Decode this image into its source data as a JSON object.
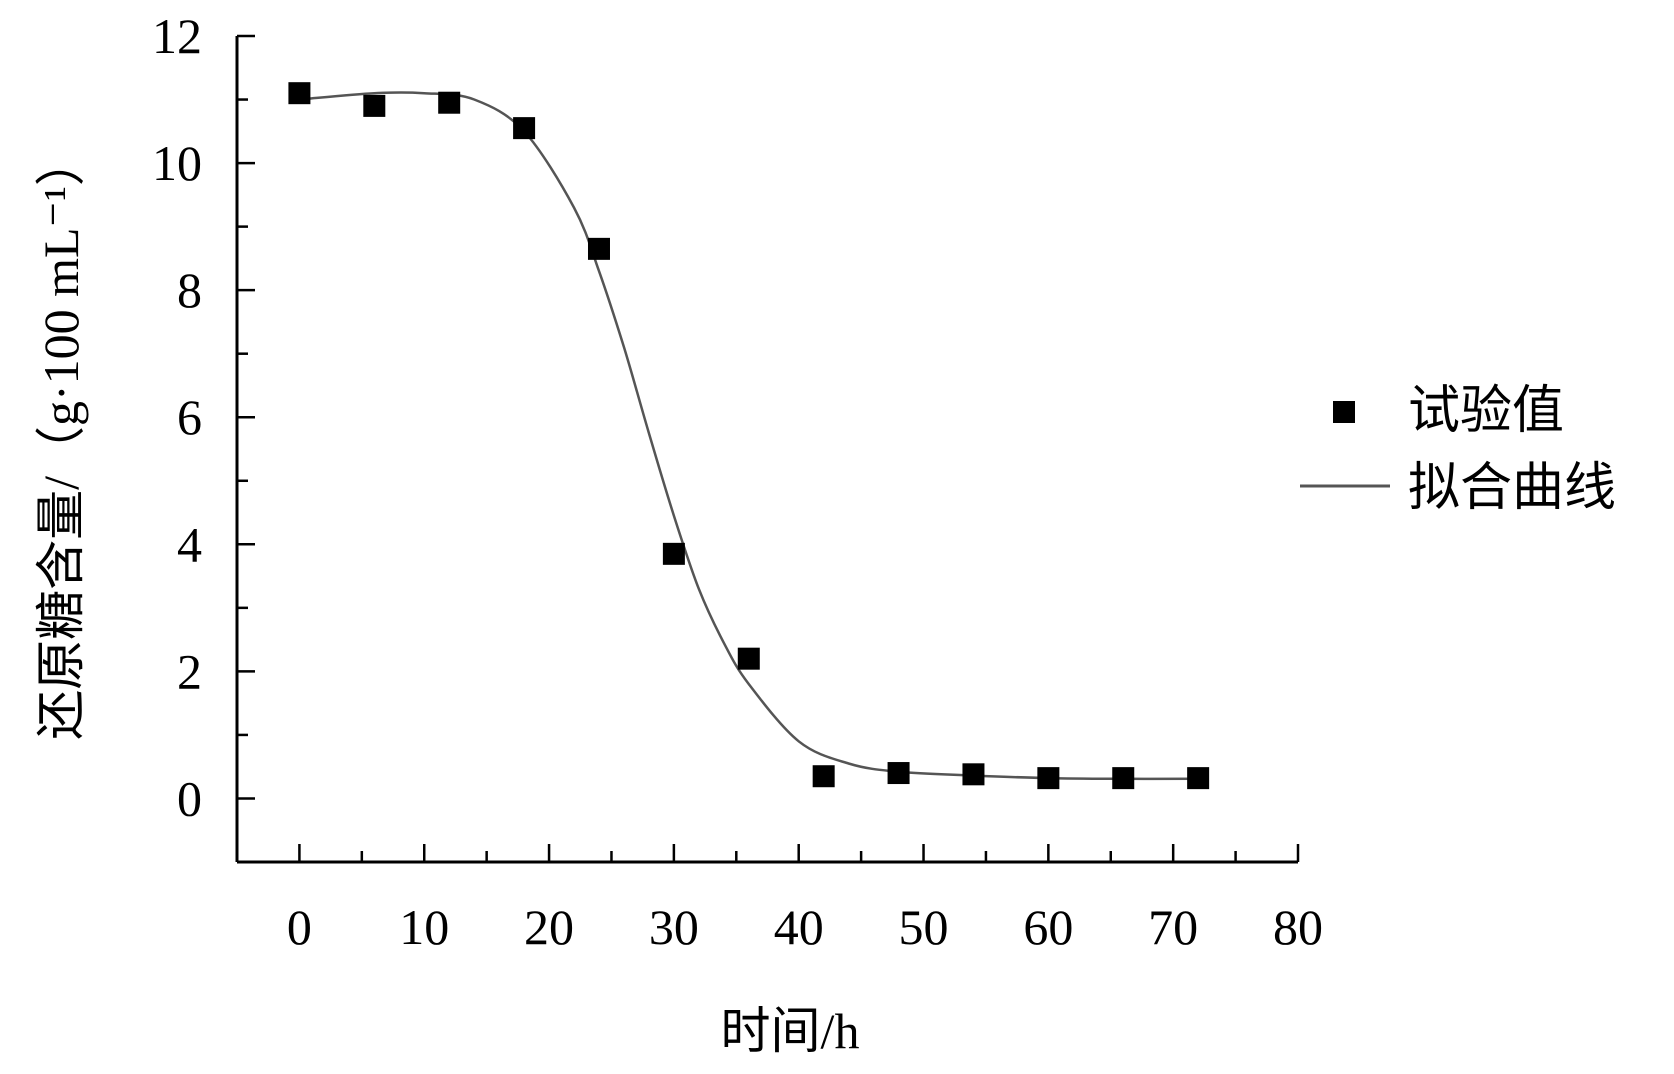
{
  "chart_data": {
    "type": "scatter",
    "xlabel": "时间/h",
    "ylabel": "还原糖含量/（g·100 mL⁻¹）",
    "xlim": [
      -5,
      80
    ],
    "ylim": [
      -1,
      12
    ],
    "xticks": [
      0,
      10,
      20,
      30,
      40,
      50,
      60,
      70,
      80
    ],
    "yticks": [
      0,
      2,
      4,
      6,
      8,
      10,
      12
    ],
    "x_tick_labels": [
      "0",
      "10",
      "20",
      "30",
      "40",
      "50",
      "60",
      "70",
      "80"
    ],
    "y_tick_labels": [
      "0",
      "2",
      "4",
      "6",
      "8",
      "10",
      "12"
    ],
    "grid": false,
    "legend_position": "right",
    "series": [
      {
        "name": "试验值",
        "kind": "scatter",
        "marker": "square",
        "color": "#000000",
        "x": [
          0,
          6,
          12,
          18,
          24,
          30,
          36,
          42,
          48,
          54,
          60,
          66,
          72
        ],
        "y": [
          11.1,
          10.9,
          10.95,
          10.55,
          8.65,
          3.85,
          2.2,
          0.35,
          0.4,
          0.38,
          0.32,
          0.32,
          0.32
        ]
      },
      {
        "name": "拟合曲线",
        "kind": "line",
        "color": "#555555",
        "x": [
          0,
          6,
          10,
          14,
          18,
          22,
          24,
          26,
          28,
          30,
          32,
          34,
          36,
          40,
          44,
          48,
          54,
          60,
          66,
          72
        ],
        "y": [
          11.0,
          11.1,
          11.1,
          11.0,
          10.5,
          9.3,
          8.3,
          7.1,
          5.75,
          4.45,
          3.3,
          2.45,
          1.8,
          0.9,
          0.55,
          0.42,
          0.36,
          0.32,
          0.31,
          0.31
        ]
      }
    ]
  }
}
